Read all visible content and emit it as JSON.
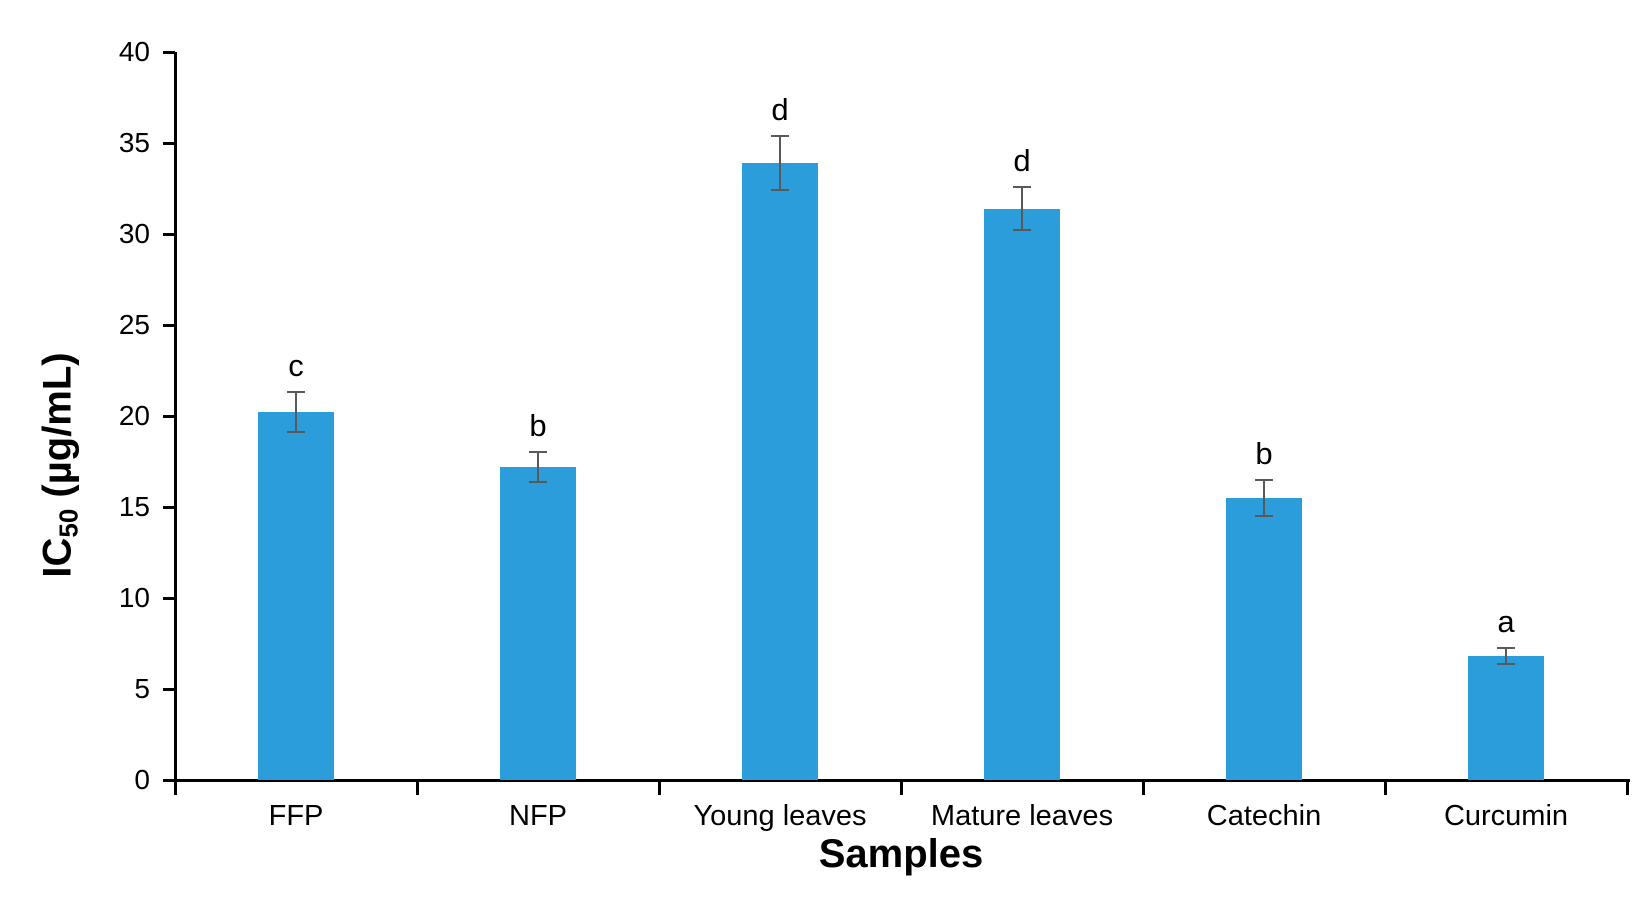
{
  "figure": {
    "background": "#ffffff"
  },
  "chart_data": {
    "type": "bar",
    "title": "",
    "xlabel": "Samples",
    "ylabel": "IC50 (µg/mL)",
    "ylabel_parts": {
      "pre": "IC",
      "sub": "50",
      "post": " (µg/mL)"
    },
    "categories": [
      "FFP",
      "NFP",
      "Young leaves",
      "Mature leaves",
      "Catechin",
      "Curcumin"
    ],
    "values": [
      20.2,
      17.2,
      33.9,
      31.4,
      15.5,
      6.8
    ],
    "error_bars": [
      1.1,
      0.8,
      1.5,
      1.2,
      1.0,
      0.45
    ],
    "sig_letters": [
      "c",
      "b",
      "d",
      "d",
      "b",
      "a"
    ],
    "ylim": [
      0,
      40
    ],
    "yticks": [
      0,
      5,
      10,
      15,
      20,
      25,
      30,
      35,
      40
    ],
    "grid": false,
    "legend": "none",
    "bar_color": "#2A9DDA",
    "error_bar_color": "#58595B",
    "axis_color": "#000000"
  }
}
